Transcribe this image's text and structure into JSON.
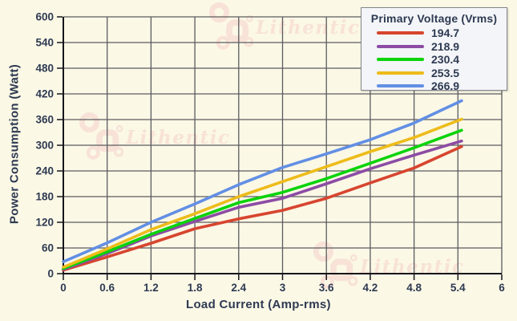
{
  "watermark": {
    "text": "Lithentic",
    "color": "#F8E2D7"
  },
  "colors": {
    "background": "#FBF8E6",
    "grid": "#5B5B60",
    "axis": "#15151A",
    "text": "#2E3A52",
    "legend_bg": "#F3F5F8",
    "legend_border": "#84868B"
  },
  "chart_data": {
    "type": "line",
    "title": "",
    "xlabel": "Load Current (Amp-rms)",
    "ylabel": "Power Consumption (Watt)",
    "xlim": [
      0,
      6
    ],
    "ylim": [
      0,
      600
    ],
    "grid": true,
    "x_ticks": {
      "values": [
        0,
        0.6,
        1.2,
        1.8,
        2.4,
        3,
        3.6,
        4.2,
        4.8,
        5.4,
        6
      ],
      "labels": [
        "0",
        "0.6",
        "1.2",
        "1.8",
        "2.4",
        "3",
        "3.6",
        "4.2",
        "4.8",
        "5.4",
        "6"
      ]
    },
    "y_ticks": {
      "values": [
        0,
        60,
        120,
        180,
        240,
        300,
        360,
        420,
        480,
        540,
        600
      ],
      "labels": [
        "0",
        "60",
        "120",
        "180",
        "240",
        "300",
        "360",
        "420",
        "480",
        "540",
        "600"
      ]
    },
    "legend": {
      "title": "Primary Voltage (Vrms)",
      "position": "top-right"
    },
    "x": [
      0,
      0.6,
      1.2,
      1.8,
      2.4,
      3,
      3.6,
      4.2,
      4.8,
      5.45
    ],
    "series": [
      {
        "name": "194.7",
        "color": "#D7452F",
        "values": [
          8,
          39,
          71,
          105,
          128,
          148,
          176,
          212,
          247,
          297
        ]
      },
      {
        "name": "218.9",
        "color": "#8C4CA4",
        "values": [
          10,
          47,
          88,
          122,
          155,
          176,
          210,
          245,
          277,
          310
        ]
      },
      {
        "name": "230.4",
        "color": "#0BD30B",
        "values": [
          12,
          51,
          92,
          129,
          166,
          190,
          222,
          258,
          294,
          335
        ]
      },
      {
        "name": "253.5",
        "color": "#EDBC1A",
        "values": [
          15,
          58,
          103,
          140,
          180,
          215,
          250,
          285,
          318,
          361
        ]
      },
      {
        "name": "266.9",
        "color": "#628FE4",
        "values": [
          28,
          72,
          120,
          163,
          208,
          248,
          280,
          313,
          352,
          404
        ]
      }
    ]
  }
}
